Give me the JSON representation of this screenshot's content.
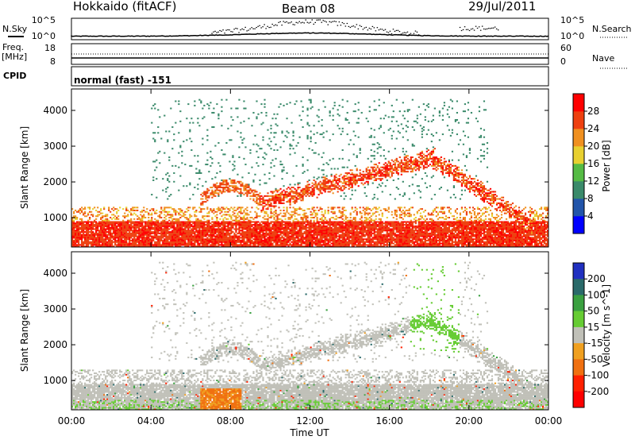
{
  "header": {
    "station": "Hokkaido (fitACF)",
    "beam": "Beam 08",
    "date": "29/Jul/2011"
  },
  "strip": {
    "left_labels": {
      "nsky": "N.Sky",
      "freq_line1": "Freq.",
      "freq_line2": "[MHz]",
      "cpid": "CPID"
    },
    "right_labels": {
      "nsearch": "N.Search",
      "nave": "Nave"
    },
    "nsky_ticks": {
      "top": "10^5",
      "bottom": "10^0"
    },
    "freq_ticks": {
      "top": "18",
      "bottom": "8"
    },
    "nave_ticks": {
      "top": "60",
      "bottom": "0"
    },
    "cpid_text": "normal (fast) -151"
  },
  "chart_data": [
    {
      "type": "heatmap",
      "name": "power",
      "ylabel": "Slant Range [km]",
      "xlim": [
        "00:00",
        "00:00"
      ],
      "ylim": [
        180,
        4600
      ],
      "yticks": [
        1000,
        2000,
        3000,
        4000
      ],
      "colorbar": {
        "label": "Power [dB]",
        "ticks": [
          4,
          8,
          12,
          16,
          20,
          24,
          28
        ],
        "range": [
          0,
          32
        ],
        "colors": [
          "#0000ff",
          "#2255aa",
          "#3a8a6a",
          "#55bb44",
          "#e8d030",
          "#f09020",
          "#ee4010",
          "#ff0000"
        ]
      },
      "features": [
        {
          "desc": "strong band near ground",
          "start_hour": 0,
          "end_hour": 24,
          "range_km": [
            250,
            900
          ],
          "level_db": 26
        },
        {
          "desc": "rising arc",
          "start_hour": 10,
          "end_hour": 18,
          "range_km": [
            1400,
            2700
          ],
          "level_db": 24
        },
        {
          "desc": "descending arc",
          "start_hour": 18,
          "end_hour": 23,
          "range_km": [
            2700,
            700
          ],
          "level_db": 24
        }
      ]
    },
    {
      "type": "heatmap",
      "name": "velocity",
      "ylabel": "Slant Range [km]",
      "xlabel": "Time UT",
      "xticks": [
        "00:00",
        "04:00",
        "08:00",
        "12:00",
        "16:00",
        "20:00",
        "00:00"
      ],
      "ylim": [
        180,
        4600
      ],
      "yticks": [
        1000,
        2000,
        3000,
        4000
      ],
      "colorbar": {
        "label": "Velocity [m s^-1]",
        "ticks": [
          200,
          100,
          50,
          15,
          -15,
          -50,
          -100,
          -200
        ],
        "colors": [
          "#2030c0",
          "#2a6a6a",
          "#3aa040",
          "#66cc33",
          "#c0c0b8",
          "#f0a020",
          "#f07010",
          "#ff2000",
          "#ff0000"
        ]
      }
    }
  ]
}
